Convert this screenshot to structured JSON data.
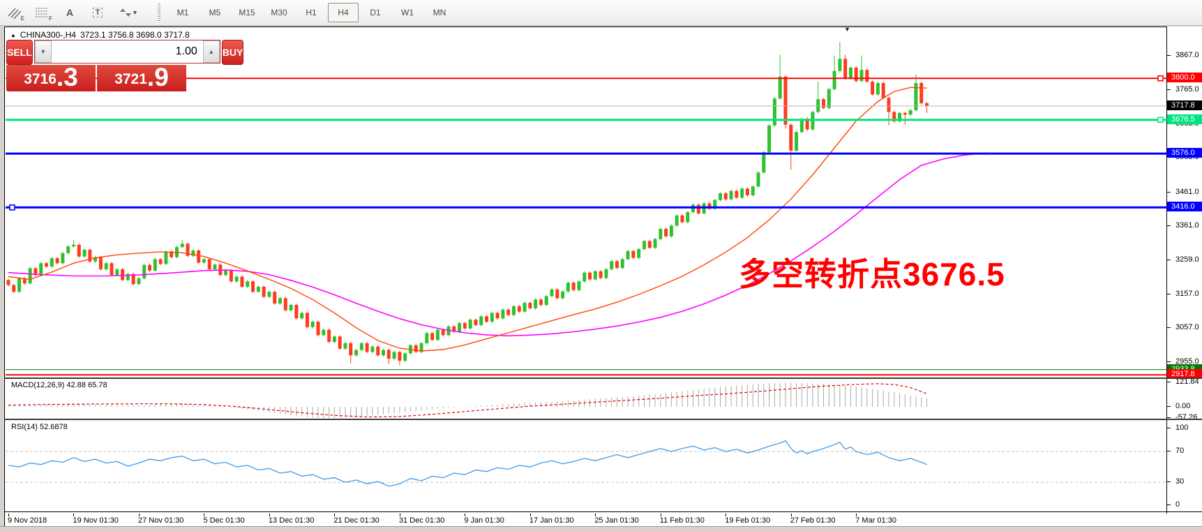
{
  "toolbar": {
    "tools": [
      {
        "name": "equidistant-channel",
        "sub": "E"
      },
      {
        "name": "fibonacci-retracement",
        "sub": "F"
      },
      {
        "name": "text",
        "glyph": "A"
      },
      {
        "name": "text-label",
        "glyph": "T"
      },
      {
        "name": "arrows",
        "caret": "▾"
      }
    ],
    "timeframes": [
      "M1",
      "M5",
      "M15",
      "M30",
      "H1",
      "H4",
      "D1",
      "W1",
      "MN"
    ],
    "active_timeframe": "H4"
  },
  "chart": {
    "collapse_arrow": "▲",
    "symbol": "CHINA300-,H4",
    "ohlc_text": "3723.1 3756.8 3698.0 3717.8",
    "trade_panel": {
      "sell_label": "SELL",
      "buy_label": "BUY",
      "volume": "1.00",
      "spin_down": "▼",
      "spin_up": "▲",
      "sell_price_main": "3716",
      "sell_price_big": ".3",
      "buy_price_main": "3721",
      "buy_price_big": ".9"
    },
    "annotation": {
      "text": "多空转折点3676.5",
      "color": "#ff0000"
    },
    "macd_label": "MACD(12,26,9) 42.88 65.78",
    "rsi_label": "RSI(14) 52.6878",
    "colors": {
      "bull": "#2fc12f",
      "bear": "#ff3a1e",
      "ma_fast": "#ff4500",
      "ma_slow": "#ff00ff",
      "macd_bar": "#a8a8a8",
      "macd_signal": "#e00000",
      "rsi_line": "#3e9bea",
      "grid_dash": "#c4c4c4"
    }
  },
  "chart_data": {
    "type": "candlestick",
    "timeframe": "H4",
    "symbol": "CHINA300-",
    "ylim": [
      2908,
      3950
    ],
    "y_ticks": [
      3867.0,
      3765.0,
      3663.0,
      3563.0,
      3461.0,
      3361.0,
      3259.0,
      3157.0,
      3057.0,
      2955.0
    ],
    "hlines": [
      {
        "price": 3800.0,
        "label": "3800.0",
        "color": "#ff0000",
        "width": 2,
        "marker": "right"
      },
      {
        "price": 3717.8,
        "label": "3717.8",
        "color": "#b8b8b8",
        "width": 1,
        "badge": "#000000"
      },
      {
        "price": 3676.5,
        "label": "3676.5",
        "color": "#00e67e",
        "width": 3,
        "marker": "right"
      },
      {
        "price": 3576.0,
        "label": "3576.0",
        "color": "#0000ff",
        "width": 3
      },
      {
        "price": 3416.0,
        "label": "3416.0",
        "color": "#0000ff",
        "width": 3,
        "marker": "left"
      },
      {
        "price": 2933.8,
        "label": "2933.8",
        "color": "#007800",
        "width": 1
      },
      {
        "price": 2917.8,
        "label": "2917.8",
        "color": "#ff0000",
        "width": 2
      }
    ],
    "x_labels": [
      "9 Nov 2018",
      "19 Nov 01:30",
      "27 Nov 01:30",
      "5 Dec 01:30",
      "13 Dec 01:30",
      "21 Dec 01:30",
      "31 Dec 01:30",
      "9 Jan 01:30",
      "17 Jan 01:30",
      "25 Jan 01:30",
      "11 Feb 01:30",
      "19 Feb 01:30",
      "27 Feb 01:30",
      "7 Mar 01:30"
    ],
    "bars_per_label": 12,
    "closes": [
      3185,
      3165,
      3205,
      3190,
      3235,
      3215,
      3250,
      3240,
      3265,
      3250,
      3280,
      3300,
      3305,
      3270,
      3290,
      3255,
      3268,
      3232,
      3250,
      3215,
      3232,
      3200,
      3218,
      3188,
      3205,
      3245,
      3228,
      3262,
      3248,
      3285,
      3268,
      3298,
      3308,
      3272,
      3288,
      3252,
      3262,
      3232,
      3246,
      3215,
      3228,
      3196,
      3210,
      3180,
      3196,
      3165,
      3180,
      3150,
      3165,
      3130,
      3146,
      3110,
      3126,
      3086,
      3102,
      3060,
      3076,
      3036,
      3052,
      3016,
      3032,
      2996,
      3012,
      2976,
      2992,
      3012,
      2986,
      3002,
      2976,
      2992,
      2966,
      2986,
      2960,
      2982,
      3006,
      2986,
      3012,
      3042,
      3022,
      3052,
      3036,
      3062,
      3046,
      3072,
      3056,
      3082,
      3066,
      3092,
      3076,
      3102,
      3086,
      3112,
      3096,
      3122,
      3106,
      3132,
      3116,
      3142,
      3126,
      3152,
      3172,
      3146,
      3166,
      3192,
      3170,
      3196,
      3222,
      3202,
      3226,
      3206,
      3232,
      3256,
      3236,
      3262,
      3286,
      3266,
      3292,
      3316,
      3296,
      3322,
      3352,
      3330,
      3362,
      3392,
      3372,
      3402,
      3424,
      3398,
      3428,
      3412,
      3438,
      3458,
      3440,
      3465,
      3445,
      3472,
      3452,
      3478,
      3520,
      3580,
      3660,
      3740,
      3805,
      3662,
      3585,
      3640,
      3680,
      3648,
      3700,
      3738,
      3712,
      3768,
      3822,
      3858,
      3800,
      3832,
      3792,
      3825,
      3790,
      3752,
      3786,
      3742,
      3700,
      3672,
      3697,
      3692,
      3705,
      3786,
      3726,
      3718
    ],
    "overrides": {
      "o": {
        "0": 3200
      },
      "h": {
        "12": 3318,
        "32": 3320,
        "142": 3870,
        "149": 3790,
        "152": 3868,
        "153": 3908,
        "154": 3870,
        "157": 3868,
        "167": 3812
      },
      "l": {
        "63": 2952,
        "70": 2950,
        "72": 2946,
        "143": 3650,
        "144": 3528,
        "162": 3660,
        "165": 3662,
        "169": 3697
      }
    },
    "ma_fast": [
      [
        0,
        3210
      ],
      [
        4,
        3202
      ],
      [
        8,
        3224
      ],
      [
        12,
        3250
      ],
      [
        16,
        3266
      ],
      [
        20,
        3275
      ],
      [
        24,
        3280
      ],
      [
        28,
        3284
      ],
      [
        32,
        3281
      ],
      [
        36,
        3270
      ],
      [
        40,
        3250
      ],
      [
        44,
        3227
      ],
      [
        48,
        3202
      ],
      [
        52,
        3175
      ],
      [
        56,
        3142
      ],
      [
        60,
        3102
      ],
      [
        64,
        3058
      ],
      [
        68,
        3020
      ],
      [
        72,
        2997
      ],
      [
        76,
        2989
      ],
      [
        80,
        2993
      ],
      [
        84,
        3007
      ],
      [
        88,
        3025
      ],
      [
        92,
        3043
      ],
      [
        96,
        3061
      ],
      [
        100,
        3079
      ],
      [
        104,
        3097
      ],
      [
        108,
        3114
      ],
      [
        112,
        3134
      ],
      [
        116,
        3157
      ],
      [
        120,
        3183
      ],
      [
        124,
        3211
      ],
      [
        128,
        3245
      ],
      [
        132,
        3283
      ],
      [
        136,
        3326
      ],
      [
        140,
        3379
      ],
      [
        144,
        3441
      ],
      [
        148,
        3513
      ],
      [
        152,
        3593
      ],
      [
        156,
        3673
      ],
      [
        160,
        3731
      ],
      [
        163,
        3761
      ],
      [
        166,
        3773
      ],
      [
        169,
        3771
      ]
    ],
    "ma_slow": [
      [
        0,
        3222
      ],
      [
        6,
        3216
      ],
      [
        12,
        3212
      ],
      [
        18,
        3212
      ],
      [
        24,
        3215
      ],
      [
        30,
        3221
      ],
      [
        36,
        3228
      ],
      [
        40,
        3230
      ],
      [
        44,
        3226
      ],
      [
        48,
        3216
      ],
      [
        52,
        3199
      ],
      [
        56,
        3179
      ],
      [
        60,
        3156
      ],
      [
        64,
        3131
      ],
      [
        68,
        3107
      ],
      [
        72,
        3085
      ],
      [
        76,
        3067
      ],
      [
        80,
        3053
      ],
      [
        84,
        3043
      ],
      [
        88,
        3037
      ],
      [
        92,
        3034
      ],
      [
        96,
        3036
      ],
      [
        100,
        3040
      ],
      [
        104,
        3046
      ],
      [
        108,
        3054
      ],
      [
        112,
        3063
      ],
      [
        116,
        3075
      ],
      [
        120,
        3089
      ],
      [
        124,
        3107
      ],
      [
        128,
        3129
      ],
      [
        132,
        3155
      ],
      [
        136,
        3185
      ],
      [
        140,
        3219
      ],
      [
        144,
        3257
      ],
      [
        148,
        3299
      ],
      [
        152,
        3345
      ],
      [
        156,
        3395
      ],
      [
        160,
        3447
      ],
      [
        164,
        3499
      ],
      [
        168,
        3541
      ],
      [
        172,
        3560
      ],
      [
        176,
        3572
      ],
      [
        180,
        3578
      ]
    ],
    "macd": {
      "params": "12,26,9",
      "current_main": 42.88,
      "current_signal": 65.78,
      "axis_labels": [
        121.84,
        0.0,
        -57.26
      ],
      "bars": [
        6,
        8,
        10,
        9,
        12,
        11,
        13,
        12,
        14,
        13,
        15,
        16,
        17,
        14,
        15,
        12,
        13,
        10,
        11,
        8,
        9,
        7,
        8,
        6,
        8,
        10,
        11,
        13,
        14,
        16,
        17,
        18,
        18,
        15,
        14,
        11,
        10,
        7,
        5,
        2,
        0,
        -3,
        -6,
        -10,
        -13,
        -17,
        -20,
        -24,
        -27,
        -31,
        -34,
        -38,
        -41,
        -45,
        -48,
        -51,
        -53,
        -55,
        -56,
        -57,
        -56,
        -55,
        -53,
        -52,
        -50,
        -48,
        -45,
        -43,
        -40,
        -38,
        -35,
        -33,
        -30,
        -27,
        -24,
        -21,
        -18,
        -15,
        -12,
        -9,
        -7,
        -5,
        -3,
        -1,
        1,
        3,
        5,
        7,
        8,
        10,
        11,
        13,
        14,
        16,
        17,
        19,
        20,
        22,
        23,
        25,
        26,
        28,
        29,
        31,
        32,
        34,
        36,
        38,
        40,
        42,
        44,
        46,
        48,
        50,
        52,
        54,
        56,
        58,
        60,
        63,
        66,
        69,
        72,
        75,
        78,
        81,
        84,
        87,
        90,
        93,
        96,
        99,
        102,
        105,
        107,
        109,
        111,
        113,
        115,
        117,
        119,
        120,
        121,
        122,
        122,
        121,
        120,
        119,
        118,
        117,
        116,
        115,
        113,
        111,
        109,
        106,
        102,
        98,
        94,
        90,
        86,
        82,
        77,
        72,
        67,
        62,
        57,
        52,
        47,
        43
      ],
      "signal": [
        [
          0,
          8
        ],
        [
          8,
          12
        ],
        [
          16,
          14
        ],
        [
          24,
          15
        ],
        [
          30,
          15
        ],
        [
          36,
          11
        ],
        [
          42,
          1
        ],
        [
          48,
          -14
        ],
        [
          54,
          -30
        ],
        [
          60,
          -43
        ],
        [
          66,
          -51
        ],
        [
          72,
          -49
        ],
        [
          78,
          -38
        ],
        [
          84,
          -24
        ],
        [
          90,
          -10
        ],
        [
          96,
          3
        ],
        [
          102,
          13
        ],
        [
          108,
          23
        ],
        [
          114,
          33
        ],
        [
          120,
          43
        ],
        [
          126,
          55
        ],
        [
          132,
          65
        ],
        [
          138,
          77
        ],
        [
          144,
          91
        ],
        [
          150,
          104
        ],
        [
          156,
          113
        ],
        [
          160,
          116
        ],
        [
          163,
          112
        ],
        [
          166,
          97
        ],
        [
          169,
          66
        ]
      ]
    },
    "rsi": {
      "period": 14,
      "current": 52.6878,
      "levels": [
        100,
        70,
        30,
        0
      ],
      "dashed_levels": [
        70,
        30
      ],
      "points": [
        [
          0,
          52
        ],
        [
          2,
          50
        ],
        [
          4,
          55
        ],
        [
          6,
          53
        ],
        [
          8,
          58
        ],
        [
          10,
          56
        ],
        [
          12,
          62
        ],
        [
          14,
          57
        ],
        [
          16,
          60
        ],
        [
          18,
          55
        ],
        [
          20,
          57
        ],
        [
          22,
          51
        ],
        [
          24,
          55
        ],
        [
          26,
          60
        ],
        [
          28,
          58
        ],
        [
          30,
          62
        ],
        [
          32,
          64
        ],
        [
          34,
          58
        ],
        [
          36,
          60
        ],
        [
          38,
          54
        ],
        [
          40,
          56
        ],
        [
          42,
          50
        ],
        [
          44,
          52
        ],
        [
          46,
          46
        ],
        [
          48,
          48
        ],
        [
          50,
          42
        ],
        [
          52,
          44
        ],
        [
          54,
          38
        ],
        [
          56,
          40
        ],
        [
          58,
          34
        ],
        [
          60,
          36
        ],
        [
          62,
          30
        ],
        [
          64,
          33
        ],
        [
          66,
          28
        ],
        [
          68,
          31
        ],
        [
          70,
          25
        ],
        [
          72,
          28
        ],
        [
          74,
          35
        ],
        [
          76,
          32
        ],
        [
          78,
          38
        ],
        [
          80,
          36
        ],
        [
          82,
          42
        ],
        [
          84,
          40
        ],
        [
          86,
          46
        ],
        [
          88,
          44
        ],
        [
          90,
          49
        ],
        [
          92,
          47
        ],
        [
          94,
          52
        ],
        [
          96,
          50
        ],
        [
          98,
          55
        ],
        [
          100,
          58
        ],
        [
          102,
          54
        ],
        [
          104,
          57
        ],
        [
          106,
          61
        ],
        [
          108,
          58
        ],
        [
          110,
          62
        ],
        [
          112,
          66
        ],
        [
          114,
          62
        ],
        [
          116,
          66
        ],
        [
          118,
          70
        ],
        [
          120,
          74
        ],
        [
          122,
          70
        ],
        [
          124,
          74
        ],
        [
          126,
          77
        ],
        [
          128,
          72
        ],
        [
          130,
          75
        ],
        [
          132,
          70
        ],
        [
          134,
          73
        ],
        [
          136,
          68
        ],
        [
          138,
          72
        ],
        [
          140,
          77
        ],
        [
          142,
          81
        ],
        [
          143,
          84
        ],
        [
          144,
          74
        ],
        [
          145,
          68
        ],
        [
          146,
          71
        ],
        [
          147,
          67
        ],
        [
          148,
          70
        ],
        [
          150,
          74
        ],
        [
          152,
          79
        ],
        [
          153,
          82
        ],
        [
          154,
          73
        ],
        [
          155,
          76
        ],
        [
          156,
          70
        ],
        [
          158,
          66
        ],
        [
          160,
          69
        ],
        [
          162,
          62
        ],
        [
          164,
          58
        ],
        [
          166,
          61
        ],
        [
          168,
          56
        ],
        [
          169,
          53
        ]
      ]
    }
  }
}
